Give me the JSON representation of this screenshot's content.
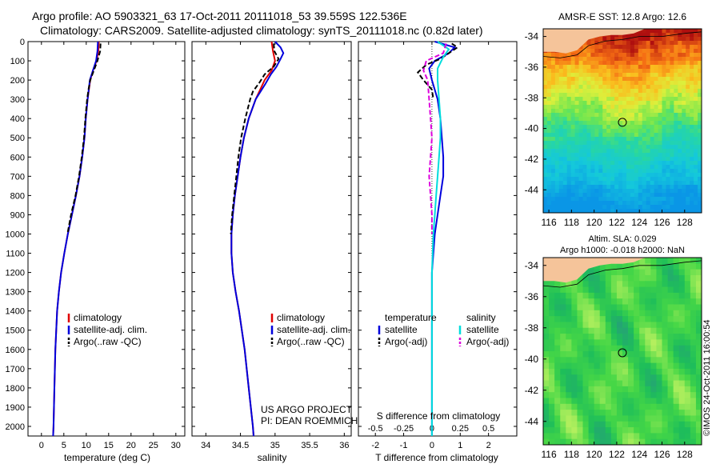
{
  "figure": {
    "title_line1": "Argo profile: AO 5903321_63 17-Oct-2011 20111018_53 39.559S 122.536E",
    "title_line2": "Climatology: CARS2009. Satellite-adjusted climatology: synTS_20111018.nc (0.82d later)",
    "watermark": "©IMOS 24-Oct-2011 16:00:54"
  },
  "chart_data": [
    {
      "type": "line",
      "xlabel": "temperature (deg C)",
      "ylabel": "",
      "xlim": [
        -3,
        32
      ],
      "ylim": [
        2050,
        0
      ],
      "xticks": [
        0,
        5,
        10,
        15,
        20,
        25,
        30
      ],
      "yticks": [
        0,
        100,
        200,
        300,
        400,
        500,
        600,
        700,
        800,
        900,
        1000,
        1100,
        1200,
        1300,
        1400,
        1500,
        1600,
        1700,
        1800,
        1900,
        2000
      ],
      "legend": [
        "climatology",
        "satellite-adj. clim.",
        "Argo(..raw -QC)"
      ],
      "legend_colors": [
        "#e00000",
        "#0000dd",
        "#000000"
      ],
      "series": [
        {
          "name": "climatology",
          "color": "#e00000",
          "dash": "none",
          "depth": [
            0,
            50,
            100,
            150,
            200,
            300,
            400,
            500,
            600,
            700,
            800,
            900,
            1000,
            1100,
            1200,
            1300,
            1400,
            1600,
            1800,
            2000,
            2050
          ],
          "values": [
            12.8,
            12.7,
            12.3,
            11.5,
            10.9,
            10.3,
            9.9,
            9.6,
            9.1,
            8.5,
            7.7,
            6.8,
            5.9,
            5.1,
            4.4,
            3.9,
            3.5,
            3.1,
            2.9,
            2.7,
            2.6
          ]
        },
        {
          "name": "satellite-adj. clim.",
          "color": "#0000dd",
          "dash": "none",
          "depth": [
            0,
            50,
            100,
            150,
            200,
            300,
            400,
            500,
            600,
            700,
            800,
            900,
            1000,
            1100,
            1200,
            1300,
            1400,
            1600,
            1800,
            2000,
            2050
          ],
          "values": [
            12.6,
            12.5,
            12.2,
            11.5,
            10.8,
            10.3,
            9.9,
            9.6,
            9.1,
            8.5,
            7.7,
            6.8,
            5.9,
            5.1,
            4.4,
            3.9,
            3.5,
            3.1,
            2.9,
            2.7,
            2.6
          ]
        },
        {
          "name": "Argo(..raw -QC)",
          "color": "#000000",
          "dash": "6,3",
          "depth": [
            10,
            50,
            100,
            150,
            200,
            250,
            300,
            400,
            500,
            600,
            700,
            800,
            900,
            1000
          ],
          "values": [
            13.2,
            13.1,
            12.5,
            11.7,
            10.9,
            10.5,
            10.2,
            9.8,
            9.5,
            9.0,
            8.4,
            7.6,
            6.6,
            5.8
          ]
        }
      ]
    },
    {
      "type": "line",
      "xlabel": "salinity",
      "ylabel": "",
      "xlim": [
        33.8,
        36.1
      ],
      "ylim": [
        2050,
        0
      ],
      "xticks": [
        34,
        34.5,
        35,
        35.5,
        36
      ],
      "xtick_labels": [
        "34",
        "34.5",
        "35",
        "35.5",
        "36"
      ],
      "legend": [
        "climatology",
        "satellite-adj. clim.",
        "Argo(..raw -QC)"
      ],
      "legend_colors": [
        "#e00000",
        "#0000dd",
        "#000000"
      ],
      "annotations": [
        "US ARGO PROJECT",
        "PI: DEAN ROEMMICH"
      ],
      "series": [
        {
          "name": "climatology",
          "color": "#e00000",
          "dash": "none",
          "depth": [
            0,
            50,
            100,
            150,
            200,
            300,
            400,
            500,
            600,
            700,
            800,
            900,
            1000,
            1100,
            1200,
            1300,
            1400,
            1600,
            1800,
            2000,
            2050
          ],
          "values": [
            34.95,
            34.97,
            35.0,
            34.95,
            34.85,
            34.72,
            34.62,
            34.55,
            34.5,
            34.46,
            34.42,
            34.39,
            34.37,
            34.37,
            34.39,
            34.43,
            34.48,
            34.56,
            34.62,
            34.68,
            34.69
          ]
        },
        {
          "name": "satellite-adj. clim.",
          "color": "#0000dd",
          "dash": "none",
          "depth": [
            0,
            30,
            60,
            90,
            130,
            170,
            220,
            300,
            400,
            500,
            600,
            700,
            800,
            900,
            1000,
            1100,
            1200,
            1300,
            1400,
            1600,
            1800,
            2000,
            2050
          ],
          "values": [
            35.0,
            35.08,
            35.12,
            35.08,
            35.02,
            34.94,
            34.86,
            34.72,
            34.62,
            34.55,
            34.5,
            34.46,
            34.42,
            34.39,
            34.37,
            34.37,
            34.39,
            34.43,
            34.48,
            34.56,
            34.62,
            34.68,
            34.69
          ]
        },
        {
          "name": "Argo(..raw -QC)",
          "color": "#000000",
          "dash": "6,3",
          "depth": [
            10,
            50,
            90,
            130,
            170,
            210,
            260,
            300,
            400,
            500,
            600,
            700,
            800,
            900,
            1000
          ],
          "values": [
            34.98,
            34.99,
            35.05,
            34.98,
            34.85,
            34.78,
            34.68,
            34.64,
            34.57,
            34.51,
            34.47,
            34.44,
            34.41,
            34.38,
            34.36
          ]
        }
      ]
    },
    {
      "type": "line",
      "xlabel": "T difference from climatology",
      "xlabel_top": "S difference from climatology",
      "xlim": [
        -2.6,
        3.0
      ],
      "ylim": [
        2050,
        0
      ],
      "xticks": [
        -2,
        -1,
        0,
        1,
        2
      ],
      "top_ticks": [
        -0.5,
        -0.25,
        0,
        0.25,
        0.5
      ],
      "top_tick_labels": [
        "-0.5",
        "-0.25",
        "0",
        "0.25",
        "0.5"
      ],
      "legend_left_title": "temperature",
      "legend_right_title": "salinity",
      "legend_left": [
        "satellite",
        "Argo(-adj)"
      ],
      "legend_right": [
        "satellite",
        "Argo(-adj)"
      ],
      "legend_left_colors": [
        "#0000dd",
        "#000000"
      ],
      "legend_right_colors": [
        "#00dddd",
        "#dd00dd"
      ],
      "series": [
        {
          "name": "T satellite",
          "color": "#0000dd",
          "dash": "none",
          "depth": [
            0,
            30,
            60,
            100,
            140,
            200,
            300,
            400,
            500,
            600,
            700,
            800,
            900,
            1000,
            1100,
            1200,
            1400,
            1600,
            1800,
            2050
          ],
          "values": [
            0.1,
            0.8,
            0.6,
            0.1,
            -0.1,
            0.0,
            0.2,
            0.3,
            0.35,
            0.4,
            0.4,
            0.3,
            0.2,
            0.1,
            0.05,
            0.0,
            0.0,
            0.0,
            0.0,
            0.0
          ]
        },
        {
          "name": "T Argo(-adj)",
          "color": "#000000",
          "dash": "6,3",
          "depth": [
            10,
            30,
            60,
            90,
            120,
            160,
            200,
            250,
            300
          ],
          "values": [
            0.7,
            0.9,
            0.6,
            0.3,
            -0.2,
            -0.5,
            -0.3,
            0.0,
            0.05
          ]
        },
        {
          "name": "S satellite",
          "color": "#00dddd",
          "dash": "none",
          "depth": [
            0,
            40,
            80,
            140,
            200,
            300,
            400,
            500,
            600,
            700,
            800,
            900,
            1000,
            1200,
            1400,
            1600,
            1800,
            2050
          ],
          "values": [
            0.2,
            0.6,
            0.4,
            0.2,
            0.2,
            0.25,
            0.3,
            0.3,
            0.25,
            0.2,
            0.15,
            0.1,
            0.05,
            0.0,
            0.0,
            0.0,
            0.0,
            0.0
          ]
        },
        {
          "name": "S Argo(-adj)",
          "color": "#dd00dd",
          "dash": "6,3",
          "depth": [
            10,
            60,
            100,
            150,
            200,
            300,
            400,
            500,
            600,
            700,
            800,
            900,
            1000
          ],
          "values": [
            0.5,
            0.4,
            -0.2,
            -0.3,
            -0.15,
            -0.1,
            -0.05,
            0.0,
            -0.05,
            -0.1,
            -0.05,
            0.0,
            0.0
          ]
        }
      ]
    },
    {
      "type": "heatmap",
      "title": "AMSR-E SST: 12.8 Argo: 12.6",
      "xlim": [
        115.5,
        129.5
      ],
      "ylim": [
        -45.5,
        -33.5
      ],
      "xticks": [
        116,
        118,
        120,
        122,
        124,
        126,
        128
      ],
      "yticks": [
        -34,
        -36,
        -38,
        -40,
        -42,
        -44
      ],
      "argo_position": [
        122.5,
        -39.6
      ]
    },
    {
      "type": "heatmap",
      "title_line1": "Altim. SLA: 0.029",
      "title_line2": "Argo h1000: -0.018 h2000: NaN",
      "xlim": [
        115.5,
        129.5
      ],
      "ylim": [
        -45.5,
        -33.5
      ],
      "xticks": [
        116,
        118,
        120,
        122,
        124,
        126,
        128
      ],
      "yticks": [
        -34,
        -36,
        -38,
        -40,
        -42,
        -44
      ],
      "argo_position": [
        122.5,
        -39.6
      ]
    }
  ]
}
